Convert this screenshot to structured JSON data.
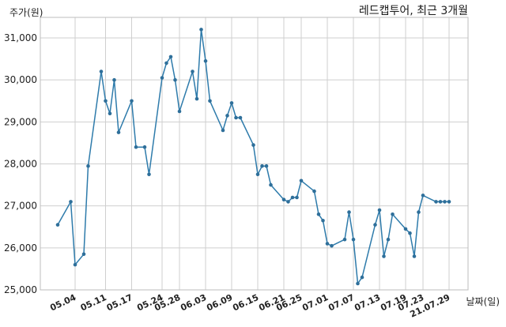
{
  "chart_data": {
    "type": "line",
    "title": "레드캡투어, 최근 3개월",
    "ylabel": "주가(원)",
    "xlabel": "날짜(일)",
    "ylim": [
      25000,
      31000
    ],
    "yticks": [
      25000,
      26000,
      27000,
      28000,
      29000,
      30000,
      31000
    ],
    "ytick_labels": [
      "25,000",
      "26,000",
      "27,000",
      "28,000",
      "29,000",
      "30,000",
      "31,000"
    ],
    "xticks": [
      "2021-05-04",
      "2021-05-11",
      "2021-05-17",
      "2021-05-24",
      "2021-05-28",
      "2021-06-03",
      "2021-06-09",
      "2021-06-15",
      "2021-06-21",
      "2021-06-25",
      "2021-07-01",
      "2021-07-07",
      "2021-07-13",
      "2021-07-19",
      "2021-07-23",
      "2021-07-29"
    ],
    "xtick_labels": [
      "05.04",
      "05.11",
      "05.17",
      "05.24",
      "05.28",
      "06.03",
      "06.09",
      "06.15",
      "06.21",
      "06.25",
      "07.01",
      "07.07",
      "07.13",
      "07.19",
      "07.23",
      "21.07.29"
    ],
    "grid": true,
    "legend": "none",
    "x": [
      "2021-04-30",
      "2021-05-03",
      "2021-05-04",
      "2021-05-06",
      "2021-05-07",
      "2021-05-10",
      "2021-05-11",
      "2021-05-12",
      "2021-05-13",
      "2021-05-14",
      "2021-05-17",
      "2021-05-18",
      "2021-05-20",
      "2021-05-21",
      "2021-05-24",
      "2021-05-25",
      "2021-05-26",
      "2021-05-27",
      "2021-05-28",
      "2021-05-31",
      "2021-06-01",
      "2021-06-02",
      "2021-06-03",
      "2021-06-04",
      "2021-06-07",
      "2021-06-08",
      "2021-06-09",
      "2021-06-10",
      "2021-06-11",
      "2021-06-14",
      "2021-06-15",
      "2021-06-16",
      "2021-06-17",
      "2021-06-18",
      "2021-06-21",
      "2021-06-22",
      "2021-06-23",
      "2021-06-24",
      "2021-06-25",
      "2021-06-28",
      "2021-06-29",
      "2021-06-30",
      "2021-07-01",
      "2021-07-02",
      "2021-07-05",
      "2021-07-06",
      "2021-07-07",
      "2021-07-08",
      "2021-07-09",
      "2021-07-12",
      "2021-07-13",
      "2021-07-14",
      "2021-07-15",
      "2021-07-16",
      "2021-07-19",
      "2021-07-20",
      "2021-07-21",
      "2021-07-22",
      "2021-07-23",
      "2021-07-26",
      "2021-07-27",
      "2021-07-28",
      "2021-07-29"
    ],
    "series": [
      {
        "values": [
          26550,
          27100,
          25600,
          25850,
          27950,
          30200,
          29500,
          29200,
          30000,
          28750,
          29500,
          28400,
          28400,
          27750,
          30050,
          30400,
          30550,
          30000,
          29250,
          30200,
          29550,
          31200,
          30450,
          29500,
          28800,
          29150,
          29450,
          29100,
          29100,
          28450,
          27750,
          27950,
          27950,
          27500,
          27150,
          27100,
          27200,
          27200,
          27600,
          27350,
          26800,
          26650,
          26100,
          26050,
          26200,
          26850,
          26200,
          25150,
          25300,
          26550,
          26900,
          25800,
          26200,
          26800,
          26450,
          26350,
          25800,
          26850,
          27250,
          27100,
          27100,
          27100,
          27100
        ]
      }
    ],
    "colors": {
      "line": "#2e7bab",
      "marker": "#2e6f9a"
    }
  }
}
